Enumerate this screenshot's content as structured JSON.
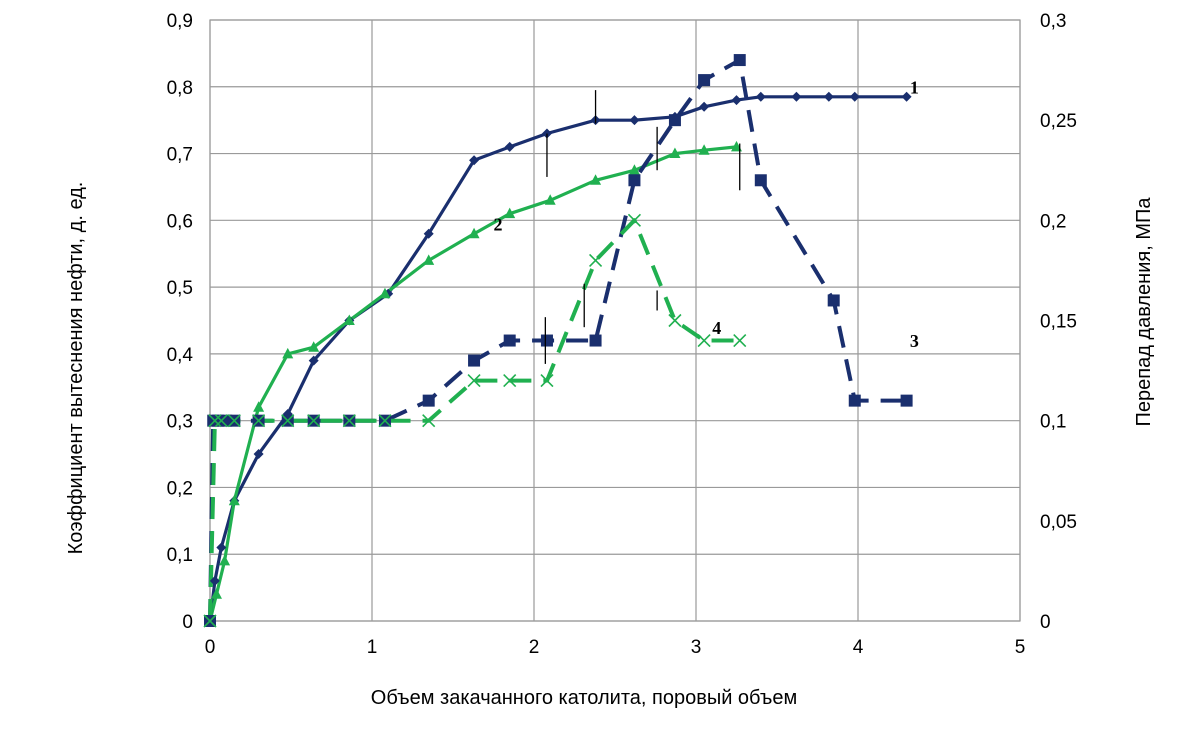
{
  "chart_data": {
    "type": "line",
    "title": "",
    "xlabel": "Объем  закачанного  католита,  поровый  объем",
    "ylabel": "Коэффициент вытеснения нефти, д. ед.",
    "y2label": "Перепад давления,  МПа",
    "xlim": [
      0,
      5
    ],
    "ylim": [
      0,
      0.9
    ],
    "y2lim": [
      0,
      0.3
    ],
    "grid": true,
    "legend": "none",
    "x_ticks": [
      "0",
      "1",
      "2",
      "3",
      "4",
      "5"
    ],
    "y_ticks": [
      "0",
      "0,1",
      "0,2",
      "0,3",
      "0,4",
      "0,5",
      "0,6",
      "0,7",
      "0,8",
      "0,9"
    ],
    "y2_ticks": [
      "0",
      "0,05",
      "0,1",
      "0,15",
      "0,2",
      "0,25",
      "0,3"
    ],
    "colors": {
      "navy": "#1a2f6e",
      "green": "#20b050"
    },
    "series": [
      {
        "label": "1",
        "axis": "left",
        "color": "#1a2f6e",
        "dash": "solid",
        "marker": "diamond",
        "x": [
          0,
          0.03,
          0.07,
          0.15,
          0.3,
          0.48,
          0.64,
          0.86,
          1.1,
          1.35,
          1.63,
          1.85,
          2.08,
          2.38,
          2.62,
          2.87,
          3.05,
          3.25,
          3.4,
          3.62,
          3.82,
          3.98,
          4.3
        ],
        "y": [
          0,
          0.06,
          0.11,
          0.18,
          0.25,
          0.31,
          0.39,
          0.45,
          0.49,
          0.58,
          0.69,
          0.71,
          0.73,
          0.75,
          0.75,
          0.755,
          0.77,
          0.78,
          0.785,
          0.785,
          0.785,
          0.785,
          0.785
        ]
      },
      {
        "label": "2",
        "axis": "left",
        "color": "#20b050",
        "dash": "solid",
        "marker": "triangle",
        "x": [
          0,
          0.04,
          0.09,
          0.15,
          0.3,
          0.48,
          0.64,
          0.86,
          1.08,
          1.35,
          1.63,
          1.85,
          2.1,
          2.38,
          2.62,
          2.87,
          3.05,
          3.25
        ],
        "y": [
          0,
          0.04,
          0.09,
          0.18,
          0.32,
          0.4,
          0.41,
          0.45,
          0.49,
          0.54,
          0.58,
          0.61,
          0.63,
          0.66,
          0.675,
          0.7,
          0.705,
          0.71
        ]
      },
      {
        "label": "3",
        "axis": "right",
        "color": "#1a2f6e",
        "dash": "dashed",
        "marker": "square",
        "x": [
          0,
          0.02,
          0.05,
          0.1,
          0.15,
          0.3,
          0.48,
          0.64,
          0.86,
          1.08,
          1.35,
          1.63,
          1.85,
          2.08,
          2.38,
          2.62,
          2.87,
          3.05,
          3.27,
          3.4,
          3.85,
          3.98,
          4.3
        ],
        "y": [
          0,
          0.1,
          0.1,
          0.1,
          0.1,
          0.1,
          0.1,
          0.1,
          0.1,
          0.1,
          0.11,
          0.13,
          0.14,
          0.14,
          0.14,
          0.22,
          0.25,
          0.27,
          0.28,
          0.22,
          0.16,
          0.11,
          0.11
        ]
      },
      {
        "label": "4",
        "axis": "right",
        "color": "#20b050",
        "dash": "dashed",
        "marker": "cross",
        "x": [
          0,
          0.03,
          0.07,
          0.15,
          0.3,
          0.48,
          0.64,
          0.86,
          1.08,
          1.35,
          1.63,
          1.85,
          2.08,
          2.38,
          2.62,
          2.87,
          3.05,
          3.27
        ],
        "y": [
          0,
          0.1,
          0.1,
          0.1,
          0.1,
          0.1,
          0.1,
          0.1,
          0.1,
          0.1,
          0.12,
          0.12,
          0.12,
          0.18,
          0.2,
          0.15,
          0.14,
          0.14
        ]
      }
    ]
  }
}
